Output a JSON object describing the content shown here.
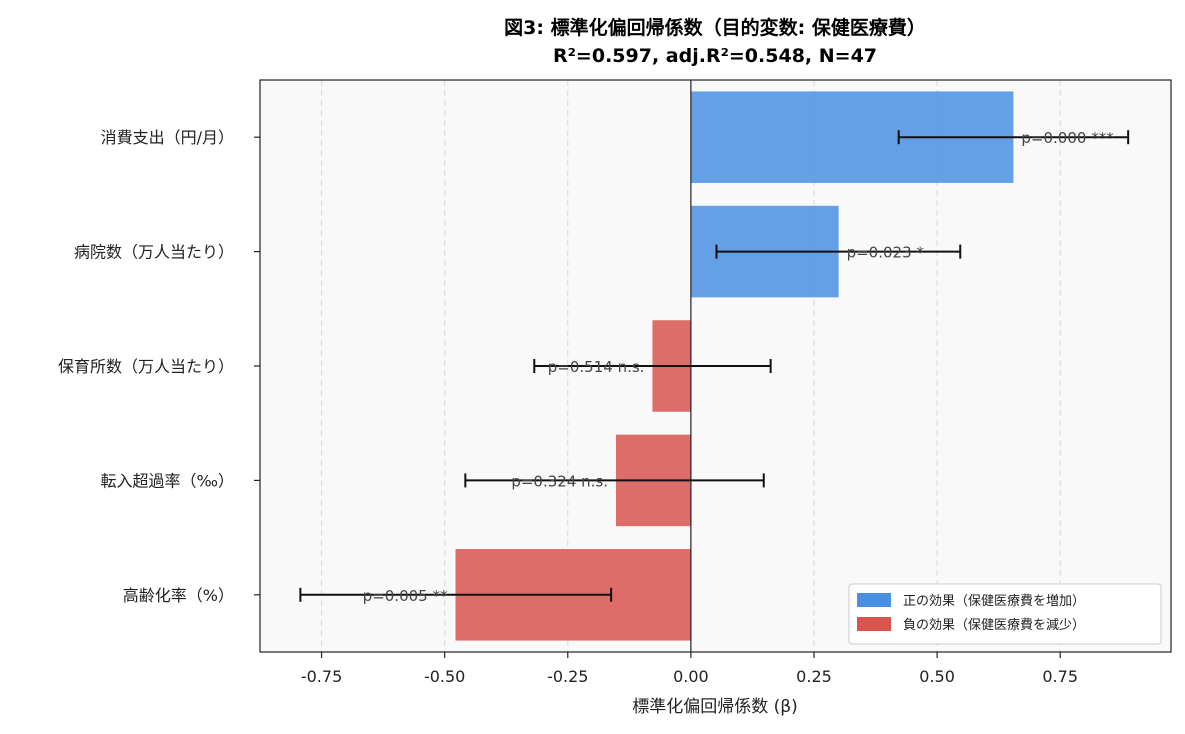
{
  "chart_data": {
    "type": "bar",
    "orientation": "horizontal",
    "title": "図3: 標準化偏回帰係数（目的変数: 保健医療費）",
    "subtitle": "R²=0.597, adj.R²=0.548, N=47",
    "xlabel": "標準化偏回帰係数 (β)",
    "ylabel": "",
    "xlim": [
      -0.875,
      0.975
    ],
    "x_ticks": [
      -0.75,
      -0.5,
      -0.25,
      0.0,
      0.25,
      0.5,
      0.75
    ],
    "x_tick_labels": [
      "-0.75",
      "-0.50",
      "-0.25",
      "0.00",
      "0.25",
      "0.50",
      "0.75"
    ],
    "grid": "x-dashed",
    "categories": [
      "消費支出（円/月）",
      "病院数（万人当たり）",
      "保育所数（万人当たり）",
      "転入超過率（‰）",
      "高齢化率（%）"
    ],
    "values": [
      0.655,
      0.3,
      -0.078,
      -0.152,
      -0.478
    ],
    "ci_low": [
      0.422,
      0.052,
      -0.318,
      -0.458,
      -0.793
    ],
    "ci_high": [
      0.888,
      0.547,
      0.162,
      0.148,
      -0.162
    ],
    "p_labels": [
      "p=0.000 ***",
      "p=0.023 *",
      "p=0.514 n.s.",
      "p=0.324 n.s.",
      "p=0.005 **"
    ],
    "legend": {
      "placement": "bottom-right",
      "entries": [
        {
          "label": "正の効果（保健医療費を増加）",
          "color": "#4a90e2"
        },
        {
          "label": "負の効果（保健医療費を減少）",
          "color": "#d9534f"
        }
      ]
    },
    "colors": {
      "positive": "#4a90e2",
      "negative": "#d9534f"
    }
  }
}
